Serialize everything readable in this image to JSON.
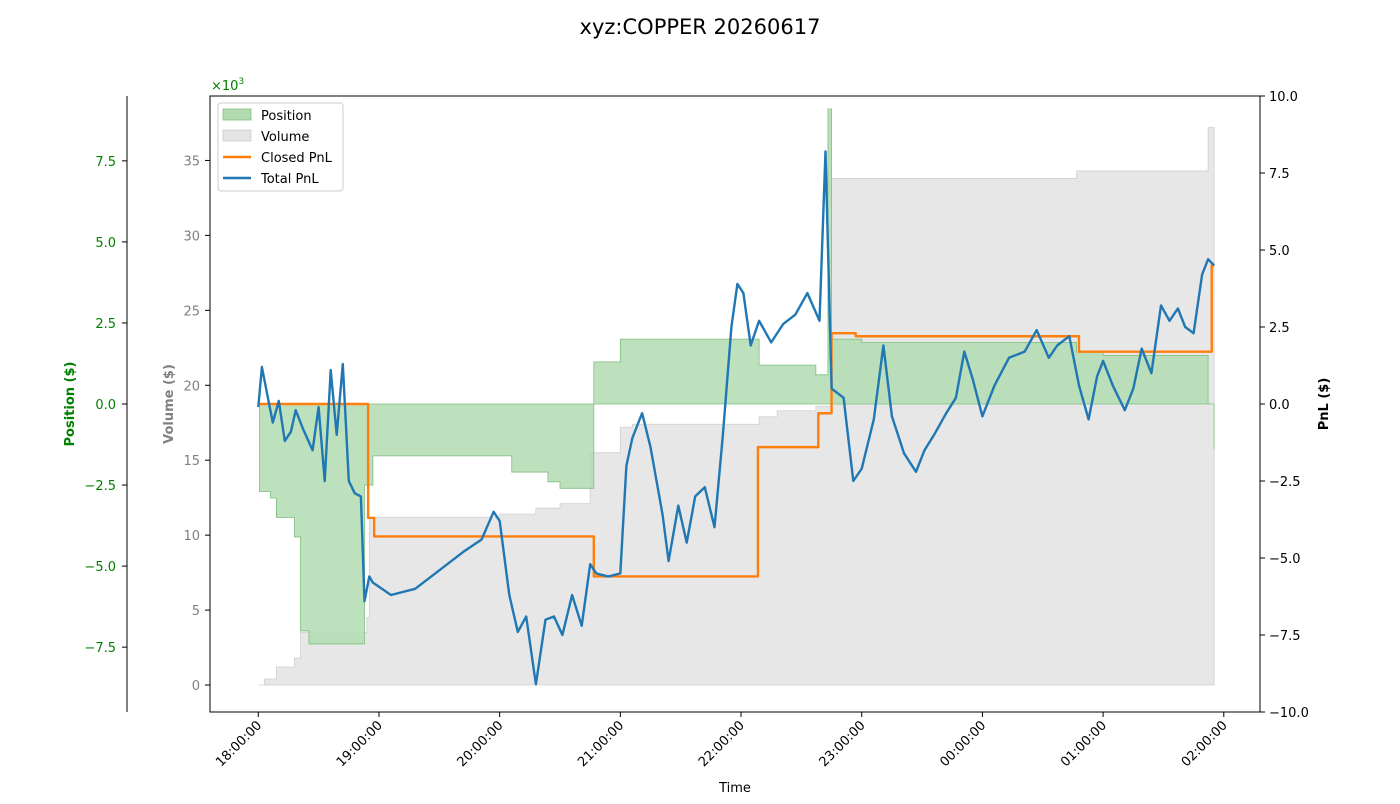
{
  "chart_data": {
    "type": "line",
    "title": "xyz:COPPER 20260617",
    "xlabel": "Time",
    "x_tick_labels": [
      "18:00:00",
      "19:00:00",
      "20:00:00",
      "21:00:00",
      "22:00:00",
      "23:00:00",
      "00:00:00",
      "01:00:00",
      "02:00:00"
    ],
    "x_range_hours": [
      17.6,
      26.3
    ],
    "axes": {
      "position": {
        "label": "Position ($)",
        "color": "#008000",
        "ylim": [
          -9.5,
          9.5
        ],
        "ticks": [
          -7.5,
          -5.0,
          -2.5,
          0.0,
          2.5,
          5.0,
          7.5
        ],
        "tick_labels": [
          "−7.5",
          "−5.0",
          "−2.5",
          "0.0",
          "2.5",
          "5.0",
          "7.5"
        ],
        "scale_label": "×10",
        "scale_exponent": "3"
      },
      "volume": {
        "label": "Volume ($)",
        "color": "#808080",
        "ylim": [
          -1.8,
          39.3
        ],
        "ticks": [
          0,
          5,
          10,
          15,
          20,
          25,
          30,
          35
        ],
        "tick_labels": [
          "0",
          "5",
          "10",
          "15",
          "20",
          "25",
          "30",
          "35"
        ]
      },
      "pnl": {
        "label": "PnL ($)",
        "color": "#000000",
        "ylim": [
          -10.0,
          10.0
        ],
        "ticks": [
          -10.0,
          -7.5,
          -5.0,
          -2.5,
          0.0,
          2.5,
          5.0,
          7.5,
          10.0
        ],
        "tick_labels": [
          "−10.0",
          "−7.5",
          "−5.0",
          "−2.5",
          "0.0",
          "2.5",
          "5.0",
          "7.5",
          "10.0"
        ]
      }
    },
    "legend": {
      "placement": "top-left",
      "entries": [
        {
          "name": "Position",
          "kind": "patch",
          "color": "#b2dbb2"
        },
        {
          "name": "Volume",
          "kind": "patch",
          "color": "#e4e4e4"
        },
        {
          "name": "Closed PnL",
          "kind": "line",
          "color": "#ff7f0e"
        },
        {
          "name": "Total PnL",
          "kind": "line",
          "color": "#1f77b4"
        }
      ]
    },
    "series": [
      {
        "name": "Position",
        "axis": "position",
        "style": "step-fill",
        "fill": "#b2dbb2",
        "points": [
          [
            18.0,
            0
          ],
          [
            18.01,
            -2.7
          ],
          [
            18.1,
            -2.9
          ],
          [
            18.15,
            -3.5
          ],
          [
            18.3,
            -4.1
          ],
          [
            18.35,
            -7.0
          ],
          [
            18.42,
            -7.4
          ],
          [
            18.5,
            -7.4
          ],
          [
            18.7,
            -7.4
          ],
          [
            18.88,
            -2.5
          ],
          [
            18.95,
            -1.6
          ],
          [
            19.95,
            -1.6
          ],
          [
            20.1,
            -2.1
          ],
          [
            20.4,
            -2.4
          ],
          [
            20.5,
            -2.6
          ],
          [
            20.78,
            1.3
          ],
          [
            21.0,
            2.0
          ],
          [
            22.12,
            2.0
          ],
          [
            22.15,
            1.2
          ],
          [
            22.62,
            0.9
          ],
          [
            22.72,
            9.1
          ],
          [
            22.75,
            2.0
          ],
          [
            23.0,
            1.9
          ],
          [
            24.0,
            1.9
          ],
          [
            24.5,
            1.9
          ],
          [
            24.78,
            1.6
          ],
          [
            25.0,
            1.5
          ],
          [
            25.15,
            1.5
          ],
          [
            25.87,
            0
          ],
          [
            25.92,
            -1.4
          ]
        ]
      },
      {
        "name": "Volume",
        "axis": "volume",
        "style": "step-fill",
        "fill": "#e4e4e4",
        "points": [
          [
            18.0,
            0
          ],
          [
            18.05,
            0.4
          ],
          [
            18.15,
            1.2
          ],
          [
            18.3,
            1.8
          ],
          [
            18.35,
            3.5
          ],
          [
            18.9,
            4.5
          ],
          [
            18.92,
            11.2
          ],
          [
            19.95,
            11.2
          ],
          [
            20.0,
            11.4
          ],
          [
            20.3,
            11.8
          ],
          [
            20.5,
            12.1
          ],
          [
            20.75,
            15.5
          ],
          [
            21.0,
            17.2
          ],
          [
            21.1,
            17.4
          ],
          [
            22.15,
            17.9
          ],
          [
            22.3,
            18.3
          ],
          [
            22.62,
            18.6
          ],
          [
            22.75,
            33.8
          ],
          [
            23.0,
            33.8
          ],
          [
            24.78,
            34.3
          ],
          [
            25.0,
            34.3
          ],
          [
            25.87,
            37.2
          ],
          [
            25.92,
            37.2
          ]
        ]
      },
      {
        "name": "Closed PnL",
        "axis": "pnl",
        "style": "step-line",
        "color": "#ff7f0e",
        "points": [
          [
            18.0,
            0
          ],
          [
            18.9,
            0
          ],
          [
            18.91,
            -3.7
          ],
          [
            18.96,
            -4.3
          ],
          [
            20.77,
            -4.3
          ],
          [
            20.78,
            -5.6
          ],
          [
            22.13,
            -5.6
          ],
          [
            22.14,
            -1.4
          ],
          [
            22.62,
            -1.4
          ],
          [
            22.64,
            -0.3
          ],
          [
            22.73,
            -0.3
          ],
          [
            22.75,
            2.3
          ],
          [
            22.95,
            2.2
          ],
          [
            24.78,
            2.2
          ],
          [
            24.8,
            1.7
          ],
          [
            25.85,
            1.7
          ],
          [
            25.9,
            4.5
          ],
          [
            25.92,
            4.5
          ]
        ]
      },
      {
        "name": "Total PnL",
        "axis": "pnl",
        "style": "line",
        "color": "#1f77b4",
        "points": [
          [
            18.0,
            -0.1
          ],
          [
            18.03,
            1.2
          ],
          [
            18.08,
            0.2
          ],
          [
            18.12,
            -0.6
          ],
          [
            18.17,
            0.1
          ],
          [
            18.22,
            -1.2
          ],
          [
            18.27,
            -0.9
          ],
          [
            18.31,
            -0.2
          ],
          [
            18.37,
            -0.8
          ],
          [
            18.45,
            -1.5
          ],
          [
            18.5,
            -0.1
          ],
          [
            18.55,
            -2.5
          ],
          [
            18.6,
            1.1
          ],
          [
            18.65,
            -1.0
          ],
          [
            18.7,
            1.3
          ],
          [
            18.75,
            -2.5
          ],
          [
            18.8,
            -2.9
          ],
          [
            18.85,
            -3.0
          ],
          [
            18.88,
            -6.4
          ],
          [
            18.92,
            -5.6
          ],
          [
            18.95,
            -5.8
          ],
          [
            19.1,
            -6.2
          ],
          [
            19.3,
            -6.0
          ],
          [
            19.5,
            -5.4
          ],
          [
            19.7,
            -4.8
          ],
          [
            19.85,
            -4.4
          ],
          [
            19.95,
            -3.5
          ],
          [
            20.0,
            -3.8
          ],
          [
            20.08,
            -6.2
          ],
          [
            20.15,
            -7.4
          ],
          [
            20.22,
            -6.9
          ],
          [
            20.3,
            -9.1
          ],
          [
            20.38,
            -7.0
          ],
          [
            20.45,
            -6.9
          ],
          [
            20.52,
            -7.5
          ],
          [
            20.6,
            -6.2
          ],
          [
            20.68,
            -7.2
          ],
          [
            20.75,
            -5.2
          ],
          [
            20.8,
            -5.5
          ],
          [
            20.9,
            -5.6
          ],
          [
            21.0,
            -5.5
          ],
          [
            21.05,
            -2.0
          ],
          [
            21.1,
            -1.1
          ],
          [
            21.18,
            -0.3
          ],
          [
            21.25,
            -1.4
          ],
          [
            21.35,
            -3.6
          ],
          [
            21.4,
            -5.1
          ],
          [
            21.48,
            -3.3
          ],
          [
            21.55,
            -4.5
          ],
          [
            21.62,
            -3.0
          ],
          [
            21.7,
            -2.7
          ],
          [
            21.78,
            -4.0
          ],
          [
            21.85,
            -1.0
          ],
          [
            21.92,
            2.5
          ],
          [
            21.97,
            3.9
          ],
          [
            22.02,
            3.6
          ],
          [
            22.08,
            1.9
          ],
          [
            22.15,
            2.7
          ],
          [
            22.25,
            2.0
          ],
          [
            22.35,
            2.6
          ],
          [
            22.45,
            2.9
          ],
          [
            22.55,
            3.6
          ],
          [
            22.65,
            2.7
          ],
          [
            22.7,
            8.2
          ],
          [
            22.75,
            0.5
          ],
          [
            22.85,
            0.2
          ],
          [
            22.93,
            -2.5
          ],
          [
            23.0,
            -2.1
          ],
          [
            23.1,
            -0.5
          ],
          [
            23.18,
            1.9
          ],
          [
            23.25,
            -0.4
          ],
          [
            23.35,
            -1.6
          ],
          [
            23.45,
            -2.2
          ],
          [
            23.52,
            -1.5
          ],
          [
            23.6,
            -1.0
          ],
          [
            23.7,
            -0.3
          ],
          [
            23.78,
            0.2
          ],
          [
            23.85,
            1.7
          ],
          [
            23.92,
            0.8
          ],
          [
            24.0,
            -0.4
          ],
          [
            24.1,
            0.6
          ],
          [
            24.22,
            1.5
          ],
          [
            24.35,
            1.7
          ],
          [
            24.45,
            2.4
          ],
          [
            24.55,
            1.5
          ],
          [
            24.62,
            1.9
          ],
          [
            24.72,
            2.2
          ],
          [
            24.8,
            0.6
          ],
          [
            24.88,
            -0.5
          ],
          [
            24.95,
            0.9
          ],
          [
            25.0,
            1.4
          ],
          [
            25.08,
            0.6
          ],
          [
            25.18,
            -0.2
          ],
          [
            25.25,
            0.5
          ],
          [
            25.32,
            1.8
          ],
          [
            25.4,
            1.0
          ],
          [
            25.48,
            3.2
          ],
          [
            25.55,
            2.7
          ],
          [
            25.62,
            3.1
          ],
          [
            25.68,
            2.5
          ],
          [
            25.75,
            2.3
          ],
          [
            25.82,
            4.2
          ],
          [
            25.87,
            4.7
          ],
          [
            25.92,
            4.5
          ]
        ]
      }
    ]
  }
}
